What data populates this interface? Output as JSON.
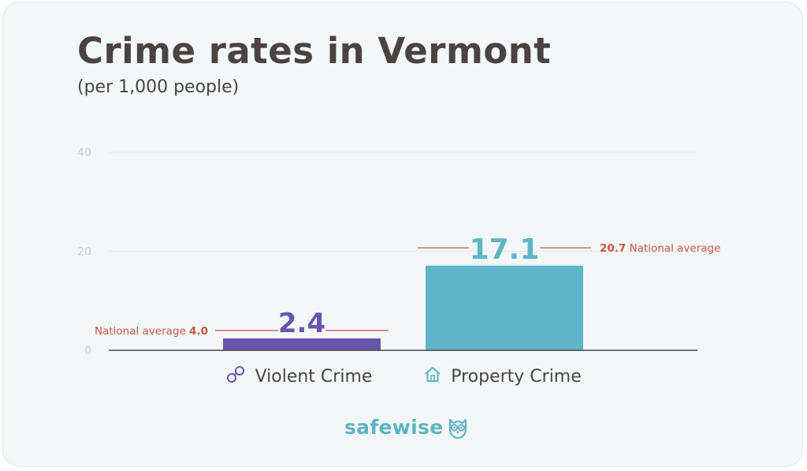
{
  "header": {
    "title": "Crime rates in Vermont",
    "subtitle": "(per 1,000 people)"
  },
  "brand": {
    "name": "safewise",
    "icon": "owl-icon"
  },
  "colors": {
    "violent": "#6856ae",
    "property": "#5fb4c6",
    "national_avg": "#c8553f",
    "grid": "#e4eaed",
    "axis": "#4a4342",
    "tick_text": "#c4cdd2"
  },
  "chart_data": {
    "type": "bar",
    "title": "Crime rates in Vermont",
    "subtitle": "(per 1,000 people)",
    "categories": [
      "Violent Crime",
      "Property Crime"
    ],
    "category_icons": [
      "handcuffs-icon",
      "house-icon"
    ],
    "values": [
      2.4,
      17.1
    ],
    "value_labels": [
      "2.4",
      "17.1"
    ],
    "national_average": [
      4.0,
      20.7
    ],
    "national_average_labels": [
      {
        "prefix": "National average ",
        "value": "4.0",
        "suffix": ""
      },
      {
        "prefix": "",
        "value": "20.7",
        "suffix": " National average"
      }
    ],
    "y_ticks": [
      "0",
      "20",
      "40"
    ],
    "ylim": [
      0,
      40
    ],
    "grid": true,
    "xlabel": "",
    "ylabel": ""
  }
}
